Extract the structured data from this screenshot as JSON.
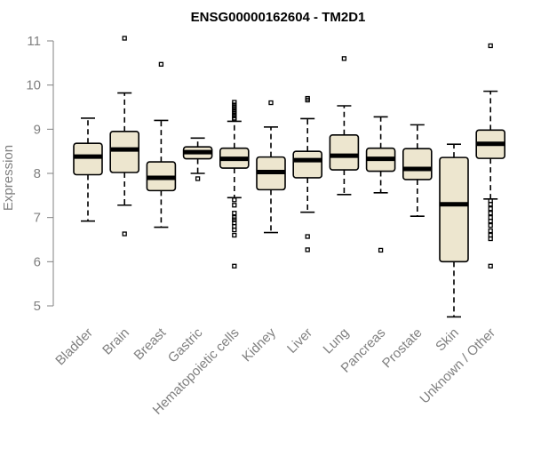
{
  "chart_data": {
    "type": "box",
    "title": "ENSG00000162604 - TM2D1",
    "xlabel": "",
    "ylabel": "Expression",
    "ylim": [
      4.7,
      11.1
    ],
    "yticks": [
      5,
      6,
      7,
      8,
      9,
      10,
      11
    ],
    "grid": false,
    "legend": "none",
    "colors": {
      "box_fill": "#ede6cf",
      "box_stroke": "#000000",
      "median": "#000000",
      "axis": "#808080",
      "text": "#808080",
      "title": "#000000"
    },
    "categories": [
      "Bladder",
      "Brain",
      "Breast",
      "Gastric",
      "Hematopoietic cells",
      "Kidney",
      "Liver",
      "Lung",
      "Pancreas",
      "Prostate",
      "Skin",
      "Unknown / Other"
    ],
    "boxes": [
      {
        "category": "Bladder",
        "whisker_low": 6.92,
        "q1": 7.97,
        "median": 8.38,
        "q3": 8.68,
        "whisker_high": 9.25,
        "outliers": []
      },
      {
        "category": "Brain",
        "whisker_low": 7.28,
        "q1": 8.02,
        "median": 8.54,
        "q3": 8.95,
        "whisker_high": 9.82,
        "outliers": [
          11.06,
          6.63
        ]
      },
      {
        "category": "Breast",
        "whisker_low": 6.78,
        "q1": 7.61,
        "median": 7.9,
        "q3": 8.26,
        "whisker_high": 9.2,
        "outliers": [
          10.47
        ]
      },
      {
        "category": "Gastric",
        "whisker_low": 8.0,
        "q1": 8.33,
        "median": 8.48,
        "q3": 8.6,
        "whisker_high": 8.8,
        "outliers": [
          7.88
        ]
      },
      {
        "category": "Hematopoietic cells",
        "whisker_low": 7.45,
        "q1": 8.12,
        "median": 8.33,
        "q3": 8.57,
        "whisker_high": 9.18,
        "outliers": [
          9.61,
          9.55,
          9.5,
          9.45,
          9.4,
          9.35,
          9.3,
          9.25,
          9.22,
          7.4,
          7.28,
          7.1,
          7.0,
          6.95,
          6.88,
          6.8,
          6.72,
          6.6,
          5.9
        ]
      },
      {
        "category": "Kidney",
        "whisker_low": 6.66,
        "q1": 7.63,
        "median": 8.03,
        "q3": 8.37,
        "whisker_high": 9.05,
        "outliers": [
          9.6
        ]
      },
      {
        "category": "Liver",
        "whisker_low": 7.12,
        "q1": 7.9,
        "median": 8.3,
        "q3": 8.5,
        "whisker_high": 9.24,
        "outliers": [
          9.7,
          9.66,
          6.57,
          6.27
        ]
      },
      {
        "category": "Lung",
        "whisker_low": 7.52,
        "q1": 8.08,
        "median": 8.4,
        "q3": 8.87,
        "whisker_high": 9.53,
        "outliers": [
          10.6
        ]
      },
      {
        "category": "Pancreas",
        "whisker_low": 7.56,
        "q1": 8.05,
        "median": 8.33,
        "q3": 8.57,
        "whisker_high": 9.28,
        "outliers": [
          6.26
        ]
      },
      {
        "category": "Prostate",
        "whisker_low": 7.03,
        "q1": 7.86,
        "median": 8.1,
        "q3": 8.56,
        "whisker_high": 9.1,
        "outliers": []
      },
      {
        "category": "Skin",
        "whisker_low": 4.75,
        "q1": 6.0,
        "median": 7.3,
        "q3": 8.36,
        "whisker_high": 8.66,
        "outliers": []
      },
      {
        "category": "Unknown / Other",
        "whisker_low": 7.42,
        "q1": 8.34,
        "median": 8.67,
        "q3": 8.98,
        "whisker_high": 9.86,
        "outliers": [
          10.89,
          7.38,
          7.3,
          7.2,
          7.1,
          7.0,
          6.92,
          6.82,
          6.7,
          6.6,
          6.52,
          5.9
        ]
      }
    ]
  }
}
